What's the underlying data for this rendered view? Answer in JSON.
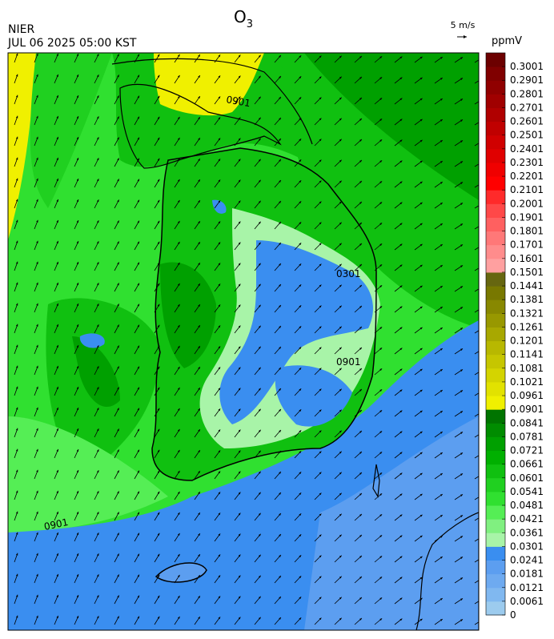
{
  "header": {
    "title": {
      "main": "O",
      "subscript": "3"
    },
    "agency": "NIER",
    "timestamp": "JUL 06 2025 05:00 KST",
    "vector_key": "5 m/s"
  },
  "map": {
    "contour_labels": [
      "0901",
      "0301",
      "0901",
      "0901"
    ]
  },
  "colorbar": {
    "unit": "ppmV",
    "levels": [
      0,
      0.0061,
      0.0121,
      0.0181,
      0.0241,
      0.0301,
      0.0361,
      0.0421,
      0.0481,
      0.0541,
      0.0601,
      0.0661,
      0.0721,
      0.0781,
      0.0841,
      0.0901,
      0.0961,
      0.1021,
      0.1081,
      0.1141,
      0.1201,
      0.1261,
      0.1321,
      0.1381,
      0.1441,
      0.1501,
      0.1601,
      0.1701,
      0.1801,
      0.1901,
      0.2001,
      0.2101,
      0.2201,
      0.2301,
      0.2401,
      0.2501,
      0.2601,
      0.2701,
      0.2801,
      0.2901,
      0.3001
    ],
    "colors": [
      "#9ccbee",
      "#80b8f0",
      "#6eaaf0",
      "#5c9ef0",
      "#3a8ef0",
      "#a8f4a8",
      "#80f080",
      "#55ee55",
      "#30e030",
      "#20d020",
      "#10c010",
      "#00b000",
      "#00a000",
      "#008c00",
      "#007400",
      "#f0f000",
      "#e2e200",
      "#d4d400",
      "#c6c600",
      "#b8b800",
      "#a8a800",
      "#989800",
      "#888800",
      "#787800",
      "#666610",
      "#ffa0a0",
      "#ff8c8c",
      "#ff7878",
      "#ff6060",
      "#ff4848",
      "#ff2a2a",
      "#ff0000",
      "#f00000",
      "#e00000",
      "#d00000",
      "#c00000",
      "#b00000",
      "#a00000",
      "#900000",
      "#800000",
      "#6c0000"
    ]
  }
}
